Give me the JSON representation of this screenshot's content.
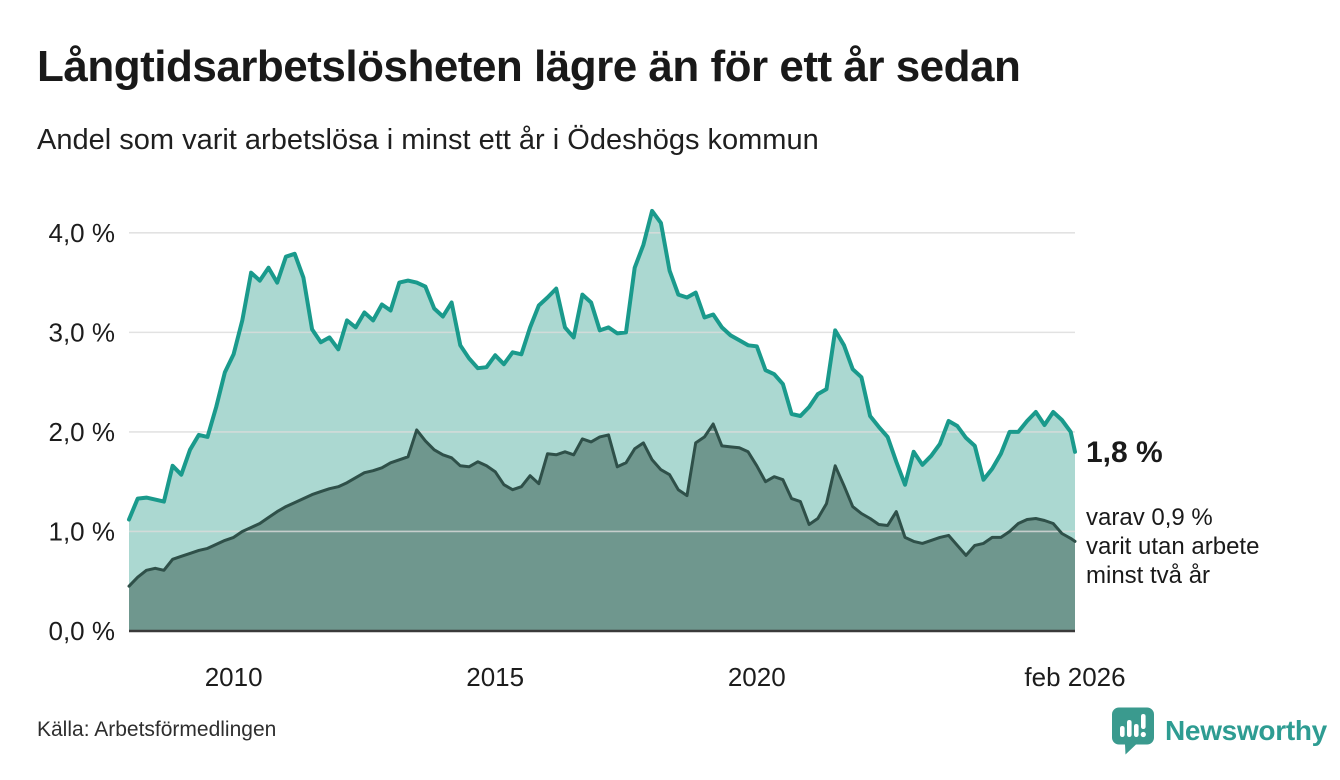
{
  "header": {
    "title": "Långtidsarbetslösheten lägre än för ett år sedan",
    "subtitle": "Andel som varit arbetslösa i minst ett år i Ödeshögs kommun"
  },
  "chart_data": {
    "type": "area",
    "title": "Långtidsarbetslösheten lägre än för ett år sedan",
    "subtitle": "Andel som varit arbetslösa i minst ett år i Ödeshögs kommun",
    "xlabel": "",
    "ylabel": "",
    "xlim": [
      2008.0,
      2026.083
    ],
    "ylim": [
      0,
      4.33
    ],
    "x_start": 2008.0,
    "x_step_years": 0.166667,
    "grid_color": "#dcdcdc",
    "baseline_color": "#3a3a3a",
    "y_ticks": [
      {
        "value": 0,
        "label": "0,0 %"
      },
      {
        "value": 1,
        "label": "1,0 %"
      },
      {
        "value": 2,
        "label": "2,0 %"
      },
      {
        "value": 3,
        "label": "3,0 %"
      },
      {
        "value": 4,
        "label": "4,0 %"
      }
    ],
    "x_ticks": [
      {
        "value": 2010,
        "label": "2010"
      },
      {
        "value": 2015,
        "label": "2015"
      },
      {
        "value": 2020,
        "label": "2020"
      },
      {
        "value": 2026.083,
        "label": "feb 2026"
      }
    ],
    "series": [
      {
        "name": "arbetslösa minst ett år",
        "color": "#1a9a8c",
        "fill": "#abd8d1",
        "values": [
          1.12,
          1.33,
          1.34,
          1.32,
          1.3,
          1.66,
          1.57,
          1.82,
          1.97,
          1.95,
          2.25,
          2.6,
          2.78,
          3.12,
          3.6,
          3.52,
          3.65,
          3.5,
          3.76,
          3.79,
          3.55,
          3.03,
          2.9,
          2.95,
          2.83,
          3.12,
          3.05,
          3.2,
          3.12,
          3.28,
          3.22,
          3.5,
          3.52,
          3.5,
          3.46,
          3.24,
          3.16,
          3.3,
          2.87,
          2.74,
          2.64,
          2.65,
          2.77,
          2.68,
          2.8,
          2.78,
          3.05,
          3.27,
          3.35,
          3.44,
          3.05,
          2.95,
          3.38,
          3.3,
          3.02,
          3.05,
          2.99,
          3.0,
          3.65,
          3.88,
          4.22,
          4.1,
          3.62,
          3.38,
          3.35,
          3.4,
          3.15,
          3.18,
          3.05,
          2.97,
          2.92,
          2.87,
          2.86,
          2.62,
          2.58,
          2.48,
          2.18,
          2.16,
          2.25,
          2.38,
          2.43,
          3.02,
          2.87,
          2.63,
          2.55,
          2.16,
          2.05,
          1.95,
          1.7,
          1.47,
          1.8,
          1.67,
          1.76,
          1.88,
          2.11,
          2.06,
          1.94,
          1.86,
          1.52,
          1.63,
          1.78,
          2.0,
          2.0,
          2.11,
          2.2,
          2.07,
          2.2,
          2.12,
          2.0,
          1.8
        ]
      },
      {
        "name": "arbetslösa minst två år",
        "color": "#2f5049",
        "fill": "#6f978e",
        "values": [
          0.45,
          0.54,
          0.61,
          0.63,
          0.61,
          0.72,
          0.75,
          0.78,
          0.81,
          0.83,
          0.87,
          0.91,
          0.94,
          1.0,
          1.04,
          1.08,
          1.14,
          1.2,
          1.25,
          1.29,
          1.33,
          1.37,
          1.4,
          1.43,
          1.45,
          1.49,
          1.54,
          1.59,
          1.61,
          1.64,
          1.69,
          1.72,
          1.75,
          2.02,
          1.91,
          1.82,
          1.77,
          1.74,
          1.66,
          1.65,
          1.7,
          1.66,
          1.6,
          1.47,
          1.42,
          1.45,
          1.56,
          1.48,
          1.78,
          1.77,
          1.8,
          1.77,
          1.93,
          1.9,
          1.95,
          1.97,
          1.65,
          1.69,
          1.83,
          1.89,
          1.72,
          1.62,
          1.57,
          1.42,
          1.36,
          1.89,
          1.95,
          2.08,
          1.86,
          1.85,
          1.84,
          1.8,
          1.66,
          1.5,
          1.55,
          1.52,
          1.33,
          1.3,
          1.07,
          1.13,
          1.28,
          1.66,
          1.46,
          1.25,
          1.18,
          1.13,
          1.07,
          1.06,
          1.2,
          0.94,
          0.9,
          0.88,
          0.91,
          0.94,
          0.96,
          0.86,
          0.76,
          0.86,
          0.88,
          0.94,
          0.94,
          1.0,
          1.08,
          1.12,
          1.13,
          1.11,
          1.08,
          0.98,
          0.93,
          0.9
        ]
      }
    ],
    "annotations": {
      "end_value_label": "1,8 %",
      "sub_label_lines": [
        "varav 0,9 %",
        "varit utan arbete",
        "minst två år"
      ]
    },
    "legend_position": "none",
    "grid": true
  },
  "footer": {
    "source": "Källa: Arbetsförmedlingen",
    "brand": "Newsworthy",
    "brand_color": "#2e9c92",
    "brand_icon_color": "#3a9a8e"
  }
}
